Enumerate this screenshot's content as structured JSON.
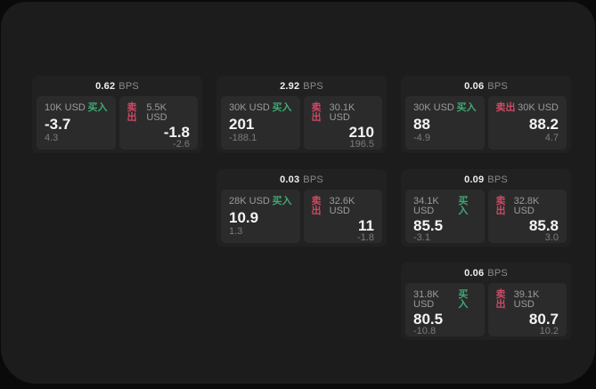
{
  "labels": {
    "bps": "BPS",
    "buy": "买入",
    "sell": "卖出"
  },
  "colors": {
    "buy": "#3fa972",
    "sell": "#cc4a64",
    "panel_bg": "#1c1c1d",
    "card_bg": "#212122",
    "cell_bg": "#2b2b2c",
    "outer_bg": "#0a0a0a"
  },
  "cards": [
    {
      "bps": "0.62",
      "buy": {
        "notional": "10K USD",
        "price": "-3.7",
        "sub": "4.3"
      },
      "sell": {
        "notional": "5.5K USD",
        "price": "-1.8",
        "sub": "-2.6"
      }
    },
    {
      "bps": "2.92",
      "buy": {
        "notional": "30K USD",
        "price": "201",
        "sub": "-188.1"
      },
      "sell": {
        "notional": "30.1K USD",
        "price": "210",
        "sub": "196.5"
      }
    },
    {
      "bps": "0.06",
      "buy": {
        "notional": "30K USD",
        "price": "88",
        "sub": "-4.9"
      },
      "sell": {
        "notional": "30K USD",
        "price": "88.2",
        "sub": "4.7"
      }
    },
    {
      "bps": "0.03",
      "buy": {
        "notional": "28K USD",
        "price": "10.9",
        "sub": "1.3"
      },
      "sell": {
        "notional": "32.6K USD",
        "price": "11",
        "sub": "-1.8"
      }
    },
    {
      "bps": "0.09",
      "buy": {
        "notional": "34.1K USD",
        "price": "85.5",
        "sub": "-3.1"
      },
      "sell": {
        "notional": "32.8K USD",
        "price": "85.8",
        "sub": "3.0"
      }
    },
    {
      "bps": "0.06",
      "buy": {
        "notional": "31.8K USD",
        "price": "80.5",
        "sub": "-10.8"
      },
      "sell": {
        "notional": "39.1K USD",
        "price": "80.7",
        "sub": "10.2"
      }
    }
  ]
}
